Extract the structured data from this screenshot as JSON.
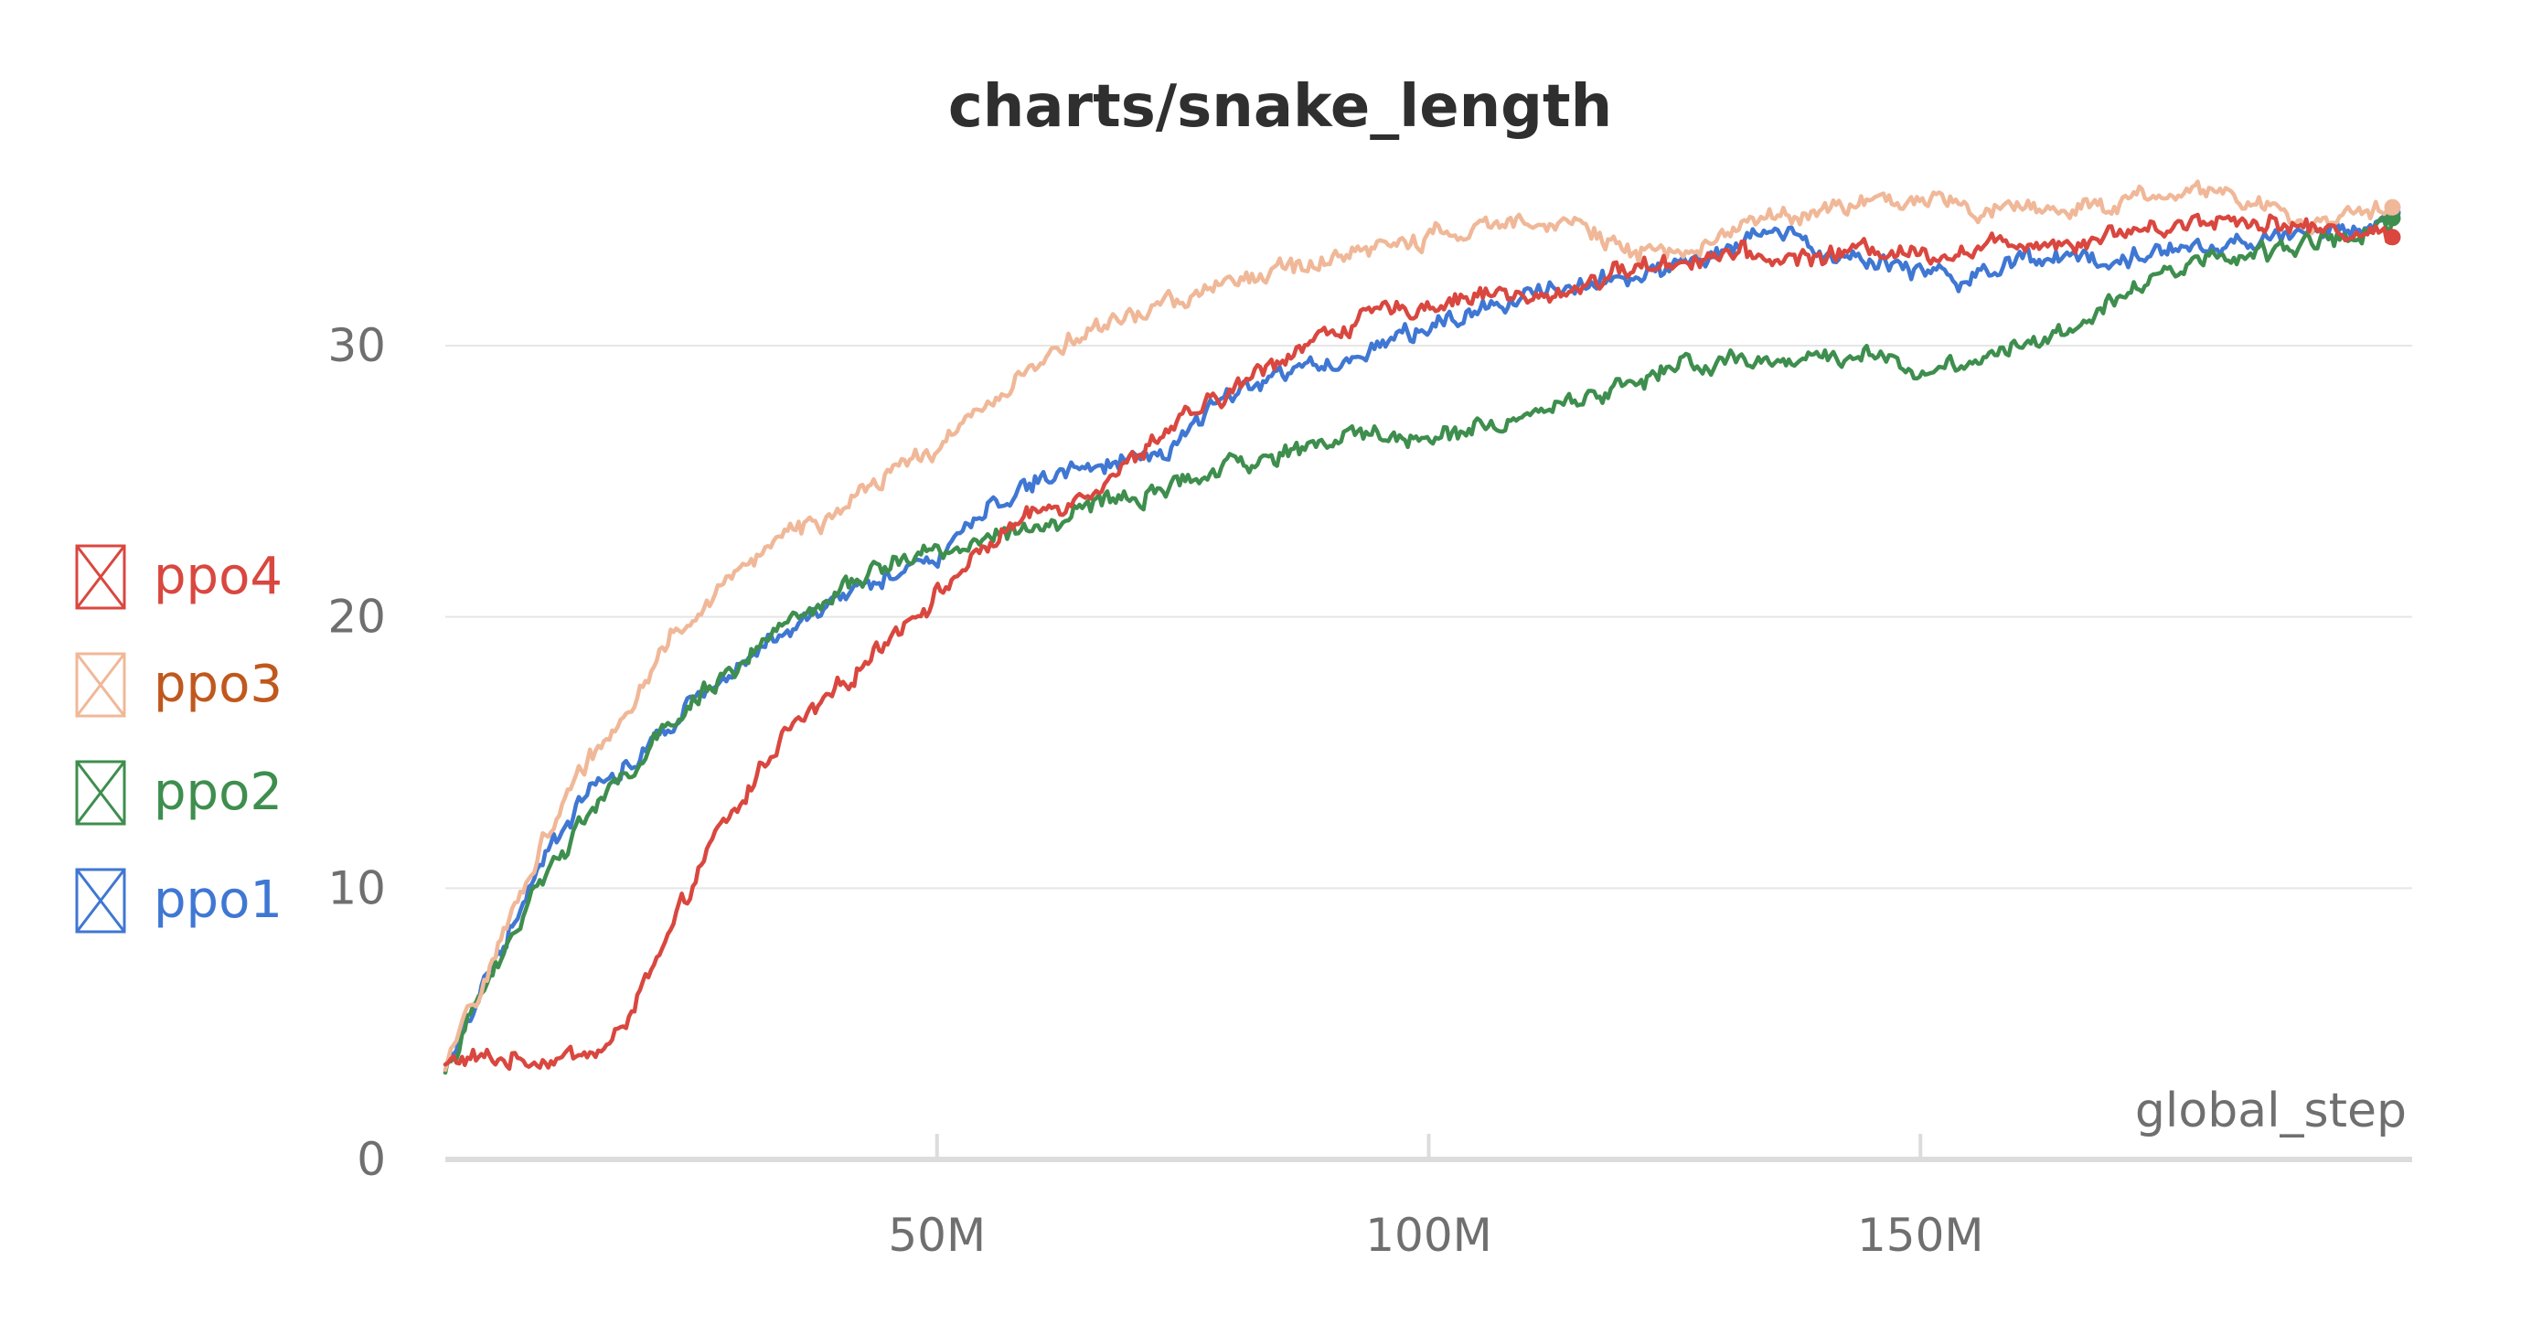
{
  "chart_data": {
    "type": "line",
    "title": "charts/snake_length",
    "xlabel": "global_step",
    "ylabel": "",
    "xlim": [
      0,
      200000000
    ],
    "ylim": [
      0,
      36
    ],
    "x_ticks": [
      {
        "value": 50000000,
        "label": "50M"
      },
      {
        "value": 100000000,
        "label": "100M"
      },
      {
        "value": 150000000,
        "label": "150M"
      }
    ],
    "y_ticks": [
      {
        "value": 0,
        "label": "0"
      },
      {
        "value": 10,
        "label": "10"
      },
      {
        "value": 20,
        "label": "20"
      },
      {
        "value": 30,
        "label": "30"
      }
    ],
    "grid": true,
    "legend_position": "left",
    "series": [
      {
        "name": "ppo4",
        "color": "#d9473f",
        "label_color": "#d9473f",
        "end_marker": true,
        "x": [
          0,
          2,
          5,
          10,
          15,
          17,
          18,
          20,
          22,
          24,
          26,
          28,
          30,
          32,
          34,
          36,
          38,
          40,
          42,
          45,
          50,
          55,
          58,
          60,
          62,
          65,
          70,
          72,
          75,
          80,
          85,
          90,
          95,
          100,
          105,
          108,
          110,
          112,
          115,
          120,
          125,
          130,
          135,
          140,
          145,
          150,
          155,
          160,
          165,
          170,
          175,
          180,
          185,
          190,
          195,
          198
        ],
        "y": [
          3.5,
          3.7,
          3.7,
          3.7,
          3.9,
          4.2,
          5,
          6.3,
          7.5,
          9.2,
          10.8,
          12.2,
          13,
          14.4,
          15.5,
          16.1,
          16.6,
          17.3,
          18.1,
          19.3,
          20.8,
          22.6,
          23.4,
          23.8,
          24.1,
          24.6,
          25.8,
          26.6,
          27.2,
          28.3,
          29.6,
          30.5,
          31.2,
          31.5,
          31.9,
          32,
          31.6,
          31.7,
          32.2,
          32.8,
          33.1,
          33.4,
          33.2,
          33.3,
          33.6,
          33.4,
          33.5,
          33.9,
          33.8,
          34.2,
          34.4,
          34.7,
          34.6,
          34.3,
          34.2,
          34
        ]
      },
      {
        "name": "ppo3",
        "color": "#f0b898",
        "label_color": "#c0581e",
        "end_marker": true,
        "x": [
          0,
          2,
          5,
          8,
          10,
          13,
          15,
          18,
          20,
          23,
          26,
          30,
          33,
          35,
          38,
          40,
          43,
          46,
          50,
          55,
          60,
          65,
          70,
          75,
          80,
          85,
          90,
          95,
          100,
          105,
          110,
          115,
          120,
          125,
          130,
          135,
          140,
          145,
          150,
          155,
          160,
          165,
          170,
          175,
          180,
          185,
          190,
          195,
          198
        ],
        "y": [
          3.3,
          5,
          7.5,
          10,
          11.8,
          13.8,
          14.9,
          16.3,
          17.5,
          19.3,
          20.2,
          21.7,
          22.8,
          23.3,
          23.4,
          23.8,
          24.6,
          25.5,
          26.2,
          27.8,
          29.4,
          30.4,
          31.1,
          31.8,
          32.3,
          32.8,
          33.2,
          33.6,
          34,
          34.2,
          34.8,
          34.6,
          33.4,
          33.3,
          34.2,
          34.8,
          35,
          35.2,
          35.4,
          35,
          35.2,
          35,
          35.3,
          35.5,
          35.8,
          35.1,
          34.6,
          34.8,
          35.1
        ]
      },
      {
        "name": "ppo2",
        "color": "#3e8e4e",
        "label_color": "#3e8e4e",
        "end_marker": true,
        "x": [
          0,
          2,
          5,
          8,
          10,
          13,
          15,
          18,
          20,
          23,
          25,
          28,
          30,
          33,
          35,
          38,
          40,
          43,
          46,
          50,
          53,
          55,
          58,
          60,
          65,
          70,
          75,
          80,
          85,
          90,
          95,
          100,
          105,
          110,
          115,
          120,
          125,
          130,
          135,
          140,
          145,
          150,
          155,
          160,
          165,
          170,
          175,
          180,
          185,
          190,
          195,
          198
        ],
        "y": [
          3.2,
          4.8,
          7,
          9,
          10.6,
          12,
          12.9,
          14,
          14.8,
          15.9,
          16.8,
          17.8,
          18.3,
          19.3,
          19.6,
          20.3,
          21,
          21.5,
          22.1,
          22.6,
          22.5,
          23,
          23,
          23.2,
          24,
          24.4,
          24.9,
          25.5,
          26,
          26.5,
          26.8,
          26.5,
          27,
          27.5,
          28,
          28.5,
          29.3,
          29.3,
          29.5,
          29.5,
          29.8,
          29,
          29.5,
          30.1,
          30.6,
          31.9,
          32.6,
          33.3,
          33.4,
          33.8,
          34.2,
          34.7
        ]
      },
      {
        "name": "ppo1",
        "color": "#3f77d3",
        "label_color": "#3f77d3",
        "end_marker": true,
        "x": [
          0,
          2,
          5,
          8,
          10,
          13,
          15,
          18,
          20,
          23,
          25,
          28,
          30,
          33,
          35,
          38,
          40,
          43,
          46,
          48,
          50,
          53,
          55,
          58,
          60,
          65,
          68,
          70,
          73,
          75,
          80,
          85,
          90,
          95,
          100,
          105,
          110,
          115,
          120,
          125,
          130,
          135,
          140,
          145,
          150,
          155,
          160,
          165,
          170,
          175,
          180,
          185,
          190,
          195,
          198
        ],
        "y": [
          3.3,
          5,
          7.4,
          9.6,
          11.3,
          12.7,
          13.8,
          14.3,
          15.2,
          16.1,
          17,
          17.7,
          18.5,
          19.2,
          19.6,
          20.2,
          20.6,
          21.1,
          21.5,
          22.2,
          22.3,
          23.1,
          24.1,
          24.6,
          25,
          25.5,
          25.8,
          25.9,
          26,
          26.8,
          28.3,
          29,
          29.3,
          30,
          30.8,
          31.3,
          32,
          32.3,
          32.4,
          33.1,
          33.4,
          34.3,
          33.3,
          33.2,
          32.8,
          32.3,
          33.1,
          33.3,
          33.1,
          33.6,
          33.6,
          34,
          34.1,
          34.3,
          34.9
        ]
      }
    ]
  }
}
